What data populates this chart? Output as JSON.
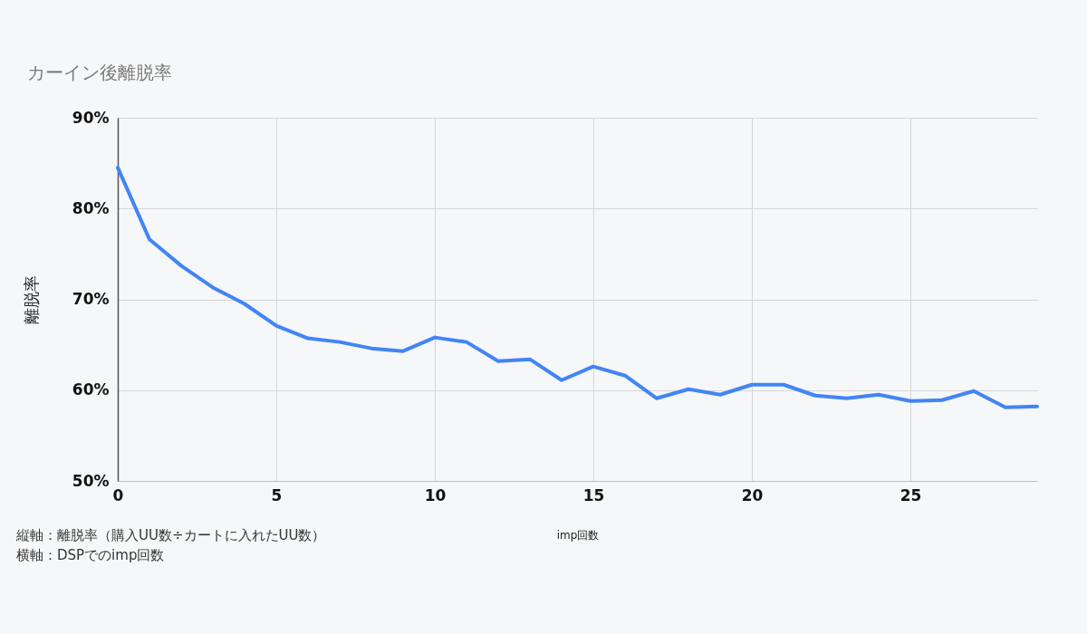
{
  "chart_data": {
    "type": "line",
    "title": "カーイン後離脱率",
    "xlabel": "imp回数",
    "ylabel": "離脱率",
    "annotations": [
      "縦軸：離脱率（購入UU数÷カートに入れたUU数）",
      "横軸：DSPでのimp回数"
    ],
    "x": [
      0,
      1,
      2,
      3,
      4,
      5,
      6,
      7,
      8,
      9,
      10,
      11,
      12,
      13,
      14,
      15,
      16,
      17,
      18,
      19,
      20,
      21,
      22,
      23,
      24,
      25,
      26,
      27,
      28,
      29
    ],
    "series": [
      {
        "color": "#4285f4",
        "values": [
          84.5,
          76.6,
          73.7,
          71.3,
          69.5,
          67.1,
          65.7,
          65.3,
          64.6,
          64.3,
          65.8,
          65.3,
          63.2,
          63.4,
          61.1,
          62.6,
          61.6,
          59.1,
          60.1,
          59.5,
          60.6,
          60.6,
          59.4,
          59.1,
          59.5,
          58.8,
          58.9,
          59.9,
          58.1,
          58.2
        ]
      }
    ],
    "xlim": [
      0,
      29
    ],
    "xticks": [
      0,
      5,
      10,
      15,
      20,
      25
    ],
    "ylim": [
      50,
      90
    ],
    "yticks": [
      {
        "value": 50,
        "label": "50%"
      },
      {
        "value": 60,
        "label": "60%"
      },
      {
        "value": 70,
        "label": "70%"
      },
      {
        "value": 80,
        "label": "80%"
      },
      {
        "value": 90,
        "label": "90%"
      }
    ],
    "grid": true,
    "marker": "none",
    "line_style": "solid"
  }
}
